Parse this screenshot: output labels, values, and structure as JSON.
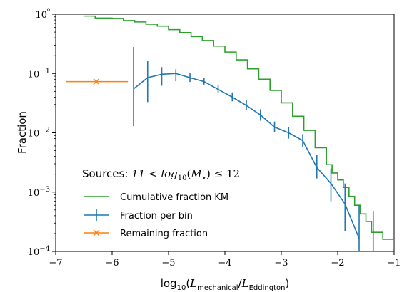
{
  "chart_data": {
    "type": "line",
    "xlabel": "log10(Lmechanical/LEddington)",
    "ylabel": "Fraction",
    "xlim": [
      -7,
      -1
    ],
    "ylim": [
      0.0001,
      1
    ],
    "yscale": "log",
    "x_ticks": [
      -7,
      -6,
      -5,
      -4,
      -3,
      -2,
      -1
    ],
    "x_tick_labels": [
      "−7",
      "−6",
      "−5",
      "−4",
      "−3",
      "−2",
      "−1"
    ],
    "y_ticks": [
      0.0001,
      0.001,
      0.01,
      0.1,
      1
    ],
    "y_tick_labels": [
      "10−4",
      "10−3",
      "10−2",
      "10−1",
      "10⁰"
    ],
    "legend": {
      "title": "Sources: 11 < log10(M⋆) ≤ 12",
      "placement": "lower-left"
    },
    "series": [
      {
        "name": "Cumulative fraction KM",
        "kind": "step-line",
        "color": "#2ca02c",
        "x": [
          -6.5,
          -6.3,
          -6.0,
          -5.8,
          -5.6,
          -5.4,
          -5.2,
          -5.0,
          -4.8,
          -4.6,
          -4.4,
          -4.2,
          -4.0,
          -3.8,
          -3.6,
          -3.4,
          -3.2,
          -3.0,
          -2.8,
          -2.6,
          -2.4,
          -2.2,
          -2.1,
          -2.0,
          -1.9,
          -1.8,
          -1.7,
          -1.6,
          -1.5,
          -1.4,
          -1.2,
          -1.0
        ],
        "y": [
          0.93,
          0.86,
          0.85,
          0.78,
          0.74,
          0.68,
          0.63,
          0.55,
          0.49,
          0.42,
          0.36,
          0.29,
          0.23,
          0.17,
          0.12,
          0.08,
          0.052,
          0.032,
          0.019,
          0.011,
          0.0056,
          0.0029,
          0.0021,
          0.0016,
          0.0012,
          0.00085,
          0.0006,
          0.00043,
          0.00032,
          0.00021,
          0.00016,
          0.00011
        ]
      },
      {
        "name": "Fraction per bin",
        "kind": "errorbar-line",
        "color": "#1f77b4",
        "x": [
          -5.62,
          -5.37,
          -5.12,
          -4.87,
          -4.62,
          -4.37,
          -4.12,
          -3.87,
          -3.62,
          -3.37,
          -3.12,
          -2.87,
          -2.62,
          -2.37,
          -2.12,
          -1.87,
          -1.62,
          -1.37
        ],
        "y": [
          0.055,
          0.085,
          0.097,
          0.1,
          0.085,
          0.073,
          0.054,
          0.04,
          0.029,
          0.02,
          0.0125,
          0.01,
          0.0074,
          0.0026,
          0.0014,
          0.00063,
          0.000165,
          null
        ],
        "y_low": [
          0.013,
          0.033,
          0.062,
          0.074,
          0.072,
          0.065,
          0.047,
          0.034,
          0.024,
          0.016,
          0.0102,
          0.008,
          0.0057,
          0.0017,
          0.0007,
          0.00022,
          0.0001,
          0.0001
        ],
        "y_high": [
          0.28,
          0.165,
          0.128,
          0.118,
          0.101,
          0.085,
          0.064,
          0.048,
          0.036,
          0.025,
          0.0155,
          0.0125,
          0.0095,
          0.0042,
          0.0025,
          0.0014,
          0.0006,
          0.00048
        ]
      },
      {
        "name": "Remaining fraction",
        "kind": "errorbar-point",
        "color": "#ff7f0e",
        "x": [
          -6.28
        ],
        "y": [
          0.073
        ],
        "x_low": [
          -6.82
        ],
        "x_high": [
          -5.72
        ]
      }
    ]
  }
}
